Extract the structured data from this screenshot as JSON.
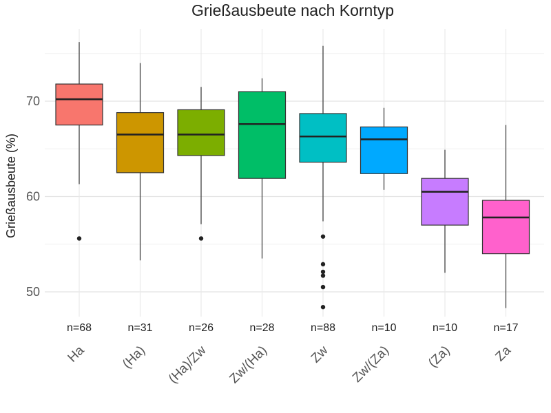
{
  "chart_data": {
    "type": "boxplot",
    "title": "Grießausbeute nach Korntyp",
    "xlabel": "",
    "ylabel": "Grießausbeute (%)",
    "ylim": [
      45,
      79
    ],
    "yticks": [
      50,
      60,
      70
    ],
    "grid": true,
    "legend": "none",
    "categories": [
      "Ha",
      "(Ha)",
      "(Ha)/Zw",
      "Zw/(Ha)",
      "Zw",
      "Zw/(Za)",
      "(Za)",
      "Za"
    ],
    "counts": [
      "n=68",
      "n=31",
      "n=26",
      "n=28",
      "n=88",
      "n=10",
      "n=10",
      "n=17"
    ],
    "colors": [
      "#F8766D",
      "#CD9600",
      "#7CAE00",
      "#00BE67",
      "#00BFC4",
      "#00A9FF",
      "#C77CFF",
      "#FF61CC"
    ],
    "boxes": [
      {
        "category": "Ha",
        "min": 61.3,
        "q1": 67.5,
        "median": 70.2,
        "q3": 71.8,
        "max": 76.2,
        "outliers": [
          55.6
        ]
      },
      {
        "category": "(Ha)",
        "min": 53.3,
        "q1": 62.5,
        "median": 66.5,
        "q3": 68.8,
        "max": 74.0,
        "outliers": []
      },
      {
        "category": "(Ha)/Zw",
        "min": 57.1,
        "q1": 64.3,
        "median": 66.5,
        "q3": 69.1,
        "max": 71.5,
        "outliers": [
          55.6
        ]
      },
      {
        "category": "Zw/(Ha)",
        "min": 53.5,
        "q1": 61.9,
        "median": 67.6,
        "q3": 71.0,
        "max": 72.4,
        "outliers": []
      },
      {
        "category": "Zw",
        "min": 57.4,
        "q1": 63.6,
        "median": 66.3,
        "q3": 68.7,
        "max": 75.8,
        "outliers": [
          55.8,
          52.9,
          52.1,
          51.7,
          50.5,
          48.4
        ]
      },
      {
        "category": "Zw/(Za)",
        "min": 60.7,
        "q1": 62.4,
        "median": 66.0,
        "q3": 67.3,
        "max": 69.3,
        "outliers": []
      },
      {
        "category": "(Za)",
        "min": 52.0,
        "q1": 57.0,
        "median": 60.5,
        "q3": 61.9,
        "max": 64.9,
        "outliers": []
      },
      {
        "category": "Za",
        "min": 48.3,
        "q1": 54.0,
        "median": 57.8,
        "q3": 59.6,
        "max": 67.5,
        "outliers": []
      }
    ]
  }
}
